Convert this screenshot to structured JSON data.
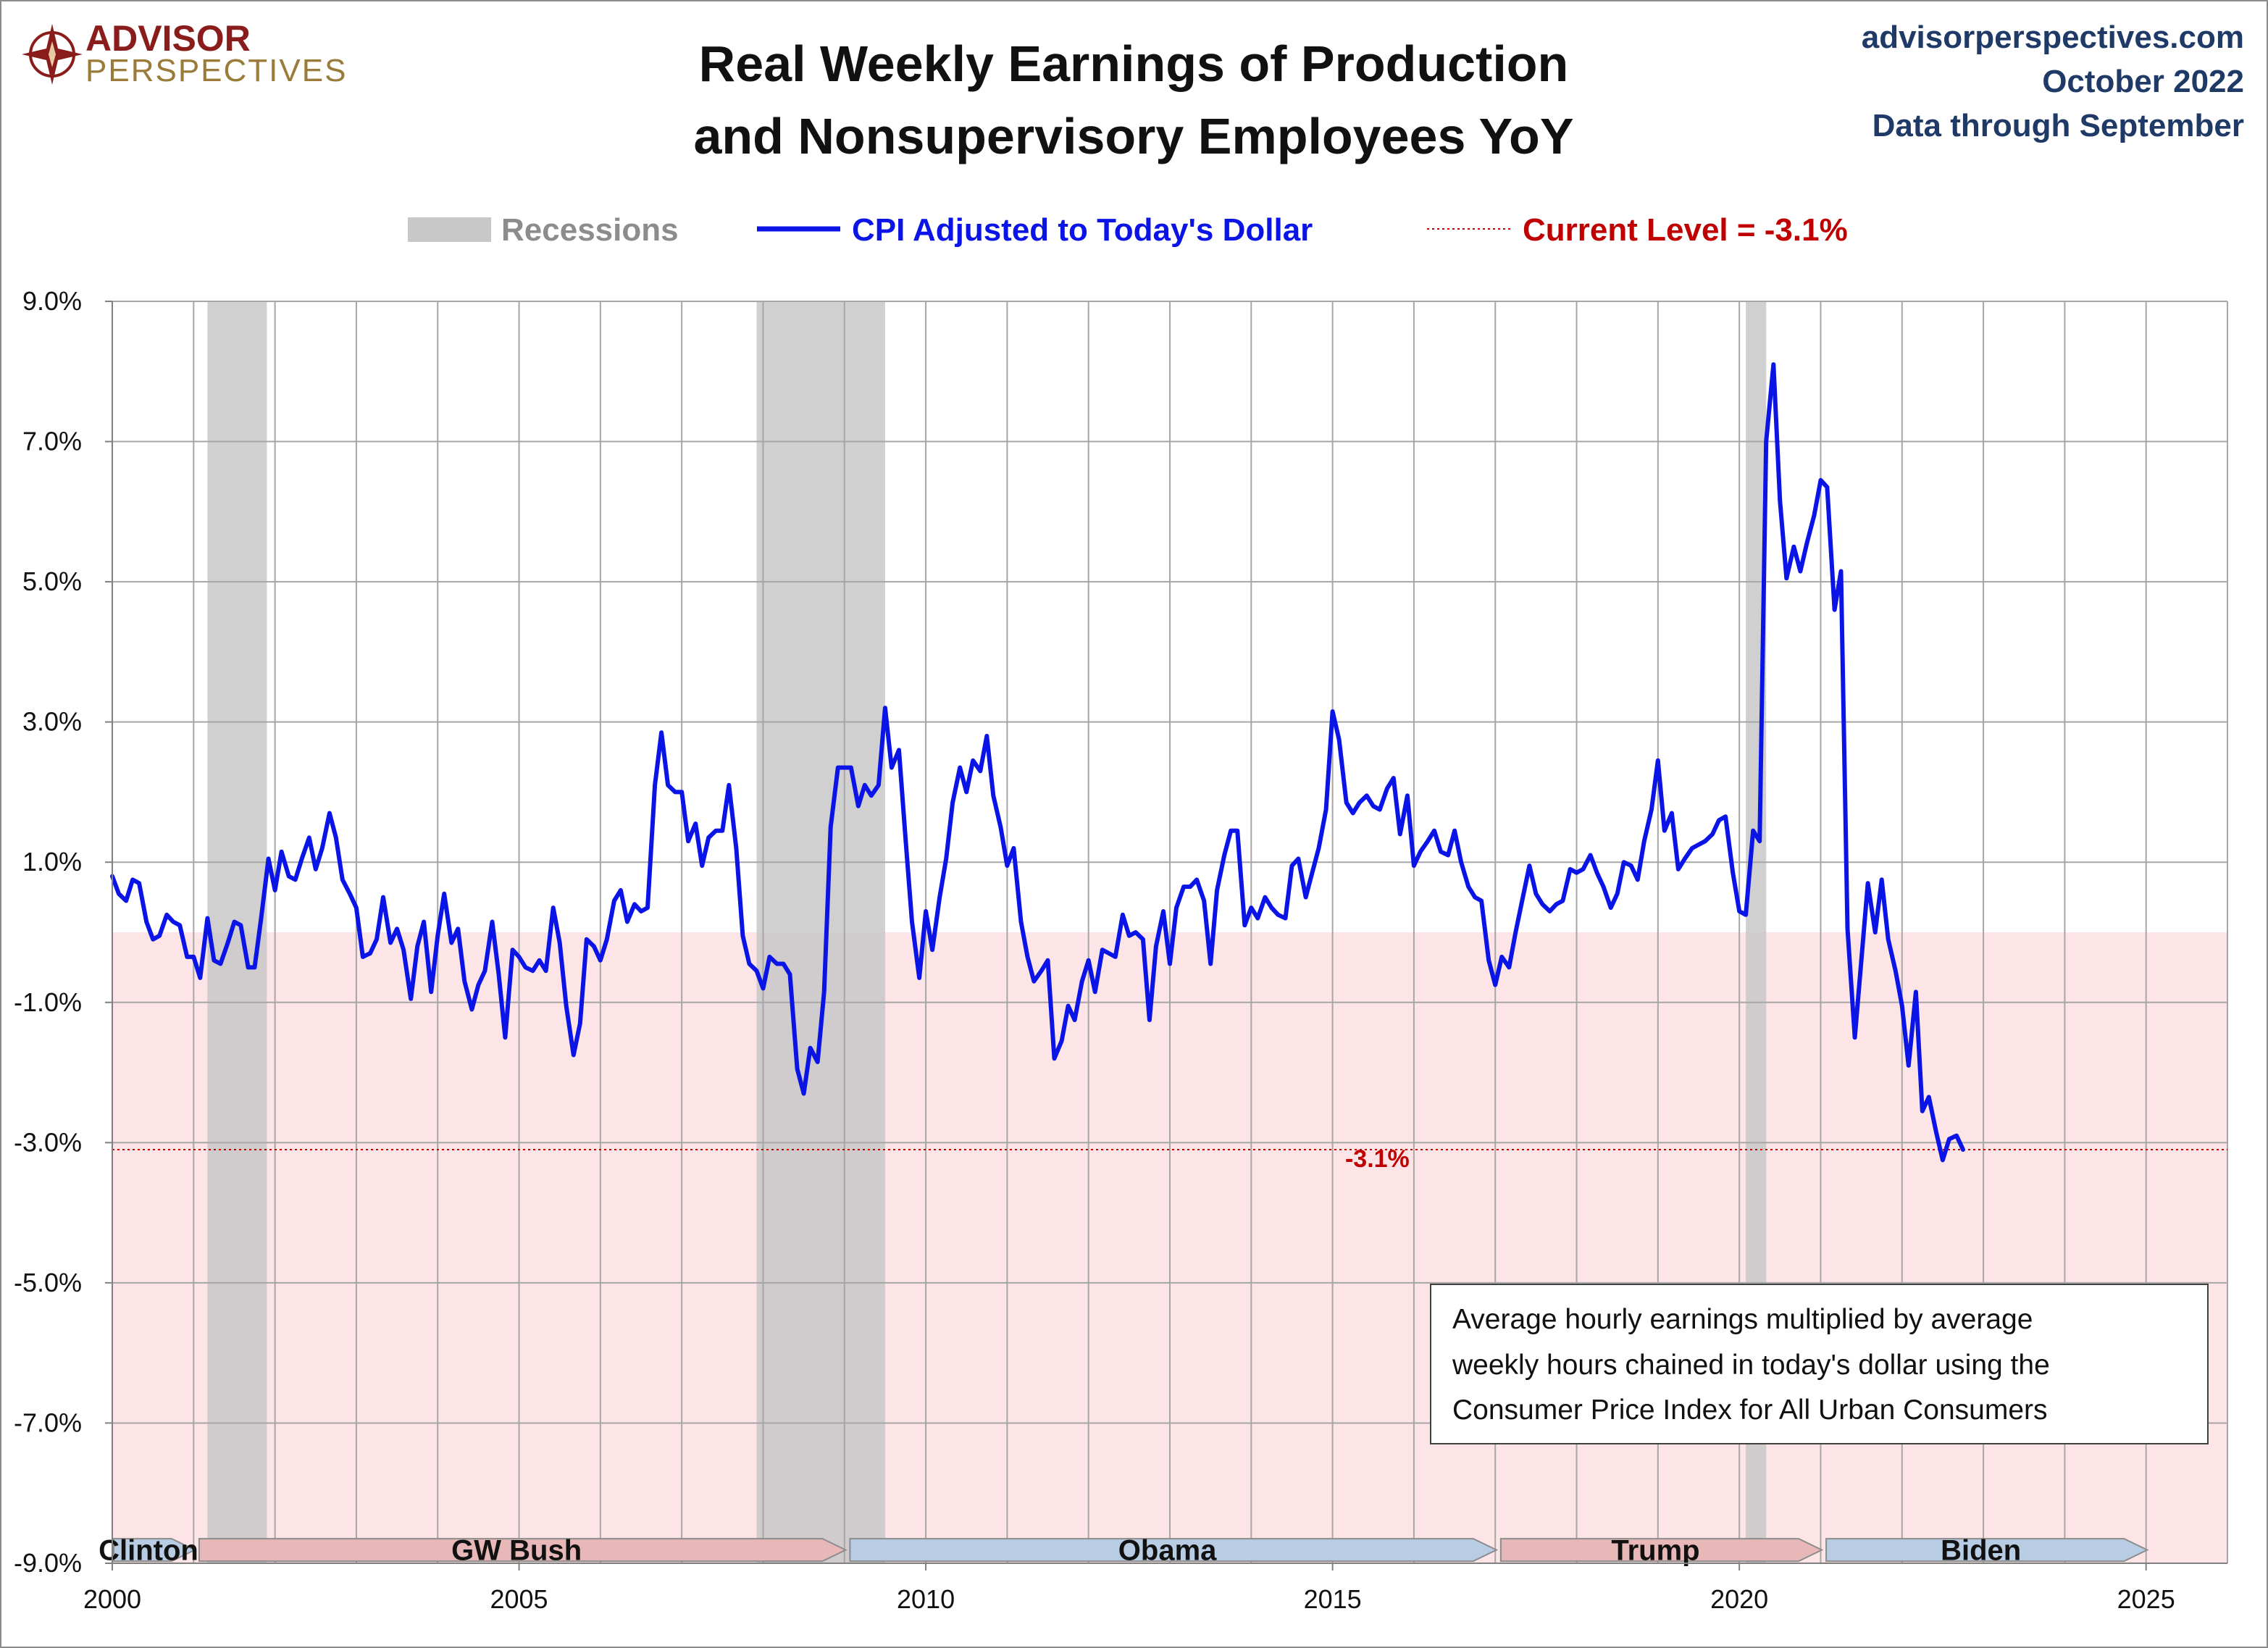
{
  "logo": {
    "line1": "ADVISOR",
    "line2": "PERSPECTIVES"
  },
  "header": {
    "site": "advisorperspectives.com",
    "date": "October 2022",
    "data_through": "Data through September"
  },
  "legend": {
    "recessions": "Recessions",
    "series": "CPI Adjusted to Today's Dollar",
    "current": "Current Level = -3.1%"
  },
  "colors": {
    "series": "#0a14e6",
    "recession": "#c8c8c8",
    "negative_zone": "#fde4e6",
    "current_level": "#c00000",
    "republican": "#e8b8b8",
    "democrat": "#b8cce4"
  },
  "note": {
    "lines": [
      "Average hourly earnings multiplied by average",
      "weekly hours chained in today's dollar using the",
      "Consumer Price Index for All Urban Consumers"
    ]
  },
  "chart_data": {
    "type": "line",
    "title": "Real Weekly Earnings of Production and Nonsupervisory Employees YoY",
    "title_lines": [
      "Real Weekly Earnings of Production",
      "and Nonsupervisory Employees YoY"
    ],
    "xlim": [
      2000,
      2026
    ],
    "ylim": [
      -9,
      9
    ],
    "x_ticks": [
      2000,
      2005,
      2010,
      2015,
      2020,
      2025
    ],
    "x_tick_labels": [
      "2000",
      "2005",
      "2010",
      "2015",
      "2020",
      "2025"
    ],
    "y_ticks": [
      9,
      7,
      5,
      3,
      1,
      -1,
      -3,
      -5,
      -7,
      -9
    ],
    "y_tick_labels": [
      "9.0%",
      "7.0%",
      "5.0%",
      "3.0%",
      "1.0%",
      "-1.0%",
      "-3.0%",
      "-5.0%",
      "-7.0%",
      "-9.0%"
    ],
    "grid": true,
    "legend_position": "top",
    "current_level": -3.1,
    "current_level_label": "-3.1%",
    "recessions": [
      [
        2001.17,
        2001.9
      ],
      [
        2007.92,
        2009.5
      ],
      [
        2020.08,
        2020.33
      ]
    ],
    "presidents": [
      {
        "name": "Clinton",
        "start": 2000.0,
        "end": 2001.05,
        "party": "D"
      },
      {
        "name": "GW Bush",
        "start": 2001.05,
        "end": 2009.05,
        "party": "R"
      },
      {
        "name": "Obama",
        "start": 2009.05,
        "end": 2017.05,
        "party": "D"
      },
      {
        "name": "Trump",
        "start": 2017.05,
        "end": 2021.05,
        "party": "R"
      },
      {
        "name": "Biden",
        "start": 2021.05,
        "end": 2025.05,
        "party": "D"
      }
    ],
    "series": [
      {
        "name": "CPI Adjusted to Today's Dollar",
        "points": [
          [
            2000.0,
            0.8
          ],
          [
            2000.08,
            0.55
          ],
          [
            2000.17,
            0.45
          ],
          [
            2000.25,
            0.75
          ],
          [
            2000.33,
            0.7
          ],
          [
            2000.42,
            0.15
          ],
          [
            2000.5,
            -0.1
          ],
          [
            2000.58,
            -0.05
          ],
          [
            2000.67,
            0.25
          ],
          [
            2000.75,
            0.15
          ],
          [
            2000.83,
            0.1
          ],
          [
            2000.92,
            -0.35
          ],
          [
            2001.0,
            -0.35
          ],
          [
            2001.08,
            -0.65
          ],
          [
            2001.17,
            0.2
          ],
          [
            2001.25,
            -0.4
          ],
          [
            2001.33,
            -0.45
          ],
          [
            2001.42,
            -0.15
          ],
          [
            2001.5,
            0.15
          ],
          [
            2001.58,
            0.1
          ],
          [
            2001.67,
            -0.5
          ],
          [
            2001.75,
            -0.5
          ],
          [
            2001.83,
            0.2
          ],
          [
            2001.92,
            1.05
          ],
          [
            2002.0,
            0.6
          ],
          [
            2002.08,
            1.15
          ],
          [
            2002.17,
            0.8
          ],
          [
            2002.25,
            0.75
          ],
          [
            2002.33,
            1.05
          ],
          [
            2002.42,
            1.35
          ],
          [
            2002.5,
            0.9
          ],
          [
            2002.58,
            1.2
          ],
          [
            2002.67,
            1.7
          ],
          [
            2002.75,
            1.35
          ],
          [
            2002.83,
            0.75
          ],
          [
            2002.92,
            0.55
          ],
          [
            2003.0,
            0.35
          ],
          [
            2003.08,
            -0.35
          ],
          [
            2003.17,
            -0.3
          ],
          [
            2003.25,
            -0.1
          ],
          [
            2003.33,
            0.5
          ],
          [
            2003.42,
            -0.15
          ],
          [
            2003.5,
            0.05
          ],
          [
            2003.58,
            -0.25
          ],
          [
            2003.67,
            -0.95
          ],
          [
            2003.75,
            -0.2
          ],
          [
            2003.83,
            0.15
          ],
          [
            2003.92,
            -0.85
          ],
          [
            2004.0,
            -0.05
          ],
          [
            2004.08,
            0.55
          ],
          [
            2004.17,
            -0.15
          ],
          [
            2004.25,
            0.05
          ],
          [
            2004.33,
            -0.7
          ],
          [
            2004.42,
            -1.1
          ],
          [
            2004.5,
            -0.75
          ],
          [
            2004.58,
            -0.55
          ],
          [
            2004.67,
            0.15
          ],
          [
            2004.75,
            -0.6
          ],
          [
            2004.83,
            -1.5
          ],
          [
            2004.92,
            -0.25
          ],
          [
            2005.0,
            -0.35
          ],
          [
            2005.08,
            -0.5
          ],
          [
            2005.17,
            -0.55
          ],
          [
            2005.25,
            -0.4
          ],
          [
            2005.33,
            -0.55
          ],
          [
            2005.42,
            0.35
          ],
          [
            2005.5,
            -0.15
          ],
          [
            2005.58,
            -1.05
          ],
          [
            2005.67,
            -1.75
          ],
          [
            2005.75,
            -1.3
          ],
          [
            2005.83,
            -0.1
          ],
          [
            2005.92,
            -0.2
          ],
          [
            2006.0,
            -0.4
          ],
          [
            2006.08,
            -0.1
          ],
          [
            2006.17,
            0.45
          ],
          [
            2006.25,
            0.6
          ],
          [
            2006.33,
            0.15
          ],
          [
            2006.42,
            0.4
          ],
          [
            2006.5,
            0.3
          ],
          [
            2006.58,
            0.35
          ],
          [
            2006.67,
            2.1
          ],
          [
            2006.75,
            2.85
          ],
          [
            2006.83,
            2.1
          ],
          [
            2006.92,
            2.0
          ],
          [
            2007.0,
            2.0
          ],
          [
            2007.08,
            1.3
          ],
          [
            2007.17,
            1.55
          ],
          [
            2007.25,
            0.95
          ],
          [
            2007.33,
            1.35
          ],
          [
            2007.42,
            1.45
          ],
          [
            2007.5,
            1.45
          ],
          [
            2007.58,
            2.1
          ],
          [
            2007.67,
            1.2
          ],
          [
            2007.75,
            -0.05
          ],
          [
            2007.83,
            -0.45
          ],
          [
            2007.92,
            -0.55
          ],
          [
            2008.0,
            -0.8
          ],
          [
            2008.08,
            -0.35
          ],
          [
            2008.17,
            -0.45
          ],
          [
            2008.25,
            -0.45
          ],
          [
            2008.33,
            -0.6
          ],
          [
            2008.42,
            -1.95
          ],
          [
            2008.5,
            -2.3
          ],
          [
            2008.58,
            -1.65
          ],
          [
            2008.67,
            -1.85
          ],
          [
            2008.75,
            -0.85
          ],
          [
            2008.83,
            1.5
          ],
          [
            2008.92,
            2.35
          ],
          [
            2009.0,
            2.35
          ],
          [
            2009.08,
            2.35
          ],
          [
            2009.17,
            1.8
          ],
          [
            2009.25,
            2.1
          ],
          [
            2009.33,
            1.95
          ],
          [
            2009.42,
            2.1
          ],
          [
            2009.5,
            3.2
          ],
          [
            2009.58,
            2.35
          ],
          [
            2009.67,
            2.6
          ],
          [
            2009.75,
            1.35
          ],
          [
            2009.83,
            0.15
          ],
          [
            2009.92,
            -0.65
          ],
          [
            2010.0,
            0.3
          ],
          [
            2010.08,
            -0.25
          ],
          [
            2010.17,
            0.5
          ],
          [
            2010.25,
            1.05
          ],
          [
            2010.33,
            1.85
          ],
          [
            2010.42,
            2.35
          ],
          [
            2010.5,
            2.0
          ],
          [
            2010.58,
            2.45
          ],
          [
            2010.67,
            2.3
          ],
          [
            2010.75,
            2.8
          ],
          [
            2010.83,
            1.95
          ],
          [
            2010.92,
            1.5
          ],
          [
            2011.0,
            0.95
          ],
          [
            2011.08,
            1.2
          ],
          [
            2011.17,
            0.15
          ],
          [
            2011.25,
            -0.35
          ],
          [
            2011.33,
            -0.7
          ],
          [
            2011.42,
            -0.55
          ],
          [
            2011.5,
            -0.4
          ],
          [
            2011.58,
            -1.8
          ],
          [
            2011.67,
            -1.55
          ],
          [
            2011.75,
            -1.05
          ],
          [
            2011.83,
            -1.25
          ],
          [
            2011.92,
            -0.7
          ],
          [
            2012.0,
            -0.4
          ],
          [
            2012.08,
            -0.85
          ],
          [
            2012.17,
            -0.25
          ],
          [
            2012.25,
            -0.3
          ],
          [
            2012.33,
            -0.35
          ],
          [
            2012.42,
            0.25
          ],
          [
            2012.5,
            -0.05
          ],
          [
            2012.58,
            0.0
          ],
          [
            2012.67,
            -0.1
          ],
          [
            2012.75,
            -1.25
          ],
          [
            2012.83,
            -0.2
          ],
          [
            2012.92,
            0.3
          ],
          [
            2013.0,
            -0.45
          ],
          [
            2013.08,
            0.35
          ],
          [
            2013.17,
            0.65
          ],
          [
            2013.25,
            0.65
          ],
          [
            2013.33,
            0.75
          ],
          [
            2013.42,
            0.45
          ],
          [
            2013.5,
            -0.45
          ],
          [
            2013.58,
            0.6
          ],
          [
            2013.67,
            1.1
          ],
          [
            2013.75,
            1.45
          ],
          [
            2013.83,
            1.45
          ],
          [
            2013.92,
            0.1
          ],
          [
            2014.0,
            0.35
          ],
          [
            2014.08,
            0.2
          ],
          [
            2014.17,
            0.5
          ],
          [
            2014.25,
            0.35
          ],
          [
            2014.33,
            0.25
          ],
          [
            2014.42,
            0.2
          ],
          [
            2014.5,
            0.95
          ],
          [
            2014.58,
            1.05
          ],
          [
            2014.67,
            0.5
          ],
          [
            2014.75,
            0.85
          ],
          [
            2014.83,
            1.2
          ],
          [
            2014.92,
            1.75
          ],
          [
            2015.0,
            3.15
          ],
          [
            2015.08,
            2.75
          ],
          [
            2015.17,
            1.85
          ],
          [
            2015.25,
            1.7
          ],
          [
            2015.33,
            1.85
          ],
          [
            2015.42,
            1.95
          ],
          [
            2015.5,
            1.8
          ],
          [
            2015.58,
            1.75
          ],
          [
            2015.67,
            2.05
          ],
          [
            2015.75,
            2.2
          ],
          [
            2015.83,
            1.4
          ],
          [
            2015.92,
            1.95
          ],
          [
            2016.0,
            0.95
          ],
          [
            2016.08,
            1.15
          ],
          [
            2016.17,
            1.3
          ],
          [
            2016.25,
            1.45
          ],
          [
            2016.33,
            1.15
          ],
          [
            2016.42,
            1.1
          ],
          [
            2016.5,
            1.45
          ],
          [
            2016.58,
            1.0
          ],
          [
            2016.67,
            0.65
          ],
          [
            2016.75,
            0.5
          ],
          [
            2016.83,
            0.45
          ],
          [
            2016.92,
            -0.4
          ],
          [
            2017.0,
            -0.75
          ],
          [
            2017.08,
            -0.35
          ],
          [
            2017.17,
            -0.5
          ],
          [
            2017.25,
            0.0
          ],
          [
            2017.33,
            0.45
          ],
          [
            2017.42,
            0.95
          ],
          [
            2017.5,
            0.55
          ],
          [
            2017.58,
            0.4
          ],
          [
            2017.67,
            0.3
          ],
          [
            2017.75,
            0.4
          ],
          [
            2017.83,
            0.45
          ],
          [
            2017.92,
            0.9
          ],
          [
            2018.0,
            0.85
          ],
          [
            2018.08,
            0.9
          ],
          [
            2018.17,
            1.1
          ],
          [
            2018.25,
            0.85
          ],
          [
            2018.33,
            0.65
          ],
          [
            2018.42,
            0.35
          ],
          [
            2018.5,
            0.55
          ],
          [
            2018.58,
            1.0
          ],
          [
            2018.67,
            0.95
          ],
          [
            2018.75,
            0.75
          ],
          [
            2018.83,
            1.3
          ],
          [
            2018.92,
            1.75
          ],
          [
            2019.0,
            2.45
          ],
          [
            2019.08,
            1.45
          ],
          [
            2019.17,
            1.7
          ],
          [
            2019.25,
            0.9
          ],
          [
            2019.33,
            1.05
          ],
          [
            2019.42,
            1.2
          ],
          [
            2019.5,
            1.25
          ],
          [
            2019.58,
            1.3
          ],
          [
            2019.67,
            1.4
          ],
          [
            2019.75,
            1.6
          ],
          [
            2019.83,
            1.65
          ],
          [
            2019.92,
            0.85
          ],
          [
            2020.0,
            0.3
          ],
          [
            2020.08,
            0.25
          ],
          [
            2020.17,
            1.45
          ],
          [
            2020.25,
            1.3
          ],
          [
            2020.33,
            7.0
          ],
          [
            2020.42,
            8.1
          ],
          [
            2020.5,
            6.15
          ],
          [
            2020.58,
            5.05
          ],
          [
            2020.67,
            5.5
          ],
          [
            2020.75,
            5.15
          ],
          [
            2020.83,
            5.55
          ],
          [
            2020.92,
            5.95
          ],
          [
            2021.0,
            6.45
          ],
          [
            2021.08,
            6.35
          ],
          [
            2021.17,
            4.6
          ],
          [
            2021.25,
            5.15
          ],
          [
            2021.33,
            0.05
          ],
          [
            2021.42,
            -1.5
          ],
          [
            2021.5,
            -0.4
          ],
          [
            2021.58,
            0.7
          ],
          [
            2021.67,
            0.0
          ],
          [
            2021.75,
            0.75
          ],
          [
            2021.83,
            -0.1
          ],
          [
            2021.92,
            -0.55
          ],
          [
            2022.0,
            -1.05
          ],
          [
            2022.08,
            -1.9
          ],
          [
            2022.17,
            -0.85
          ],
          [
            2022.25,
            -2.55
          ],
          [
            2022.33,
            -2.35
          ],
          [
            2022.42,
            -2.85
          ],
          [
            2022.5,
            -3.25
          ],
          [
            2022.58,
            -2.95
          ],
          [
            2022.67,
            -2.9
          ],
          [
            2022.75,
            -3.1
          ]
        ]
      }
    ]
  }
}
